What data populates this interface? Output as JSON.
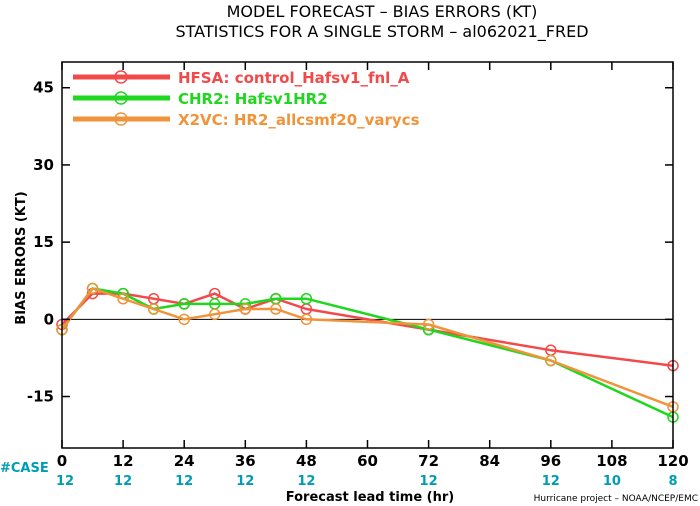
{
  "chart_data": {
    "type": "line",
    "title": "MODEL FORECAST – BIAS ERRORS (KT)",
    "subtitle": "STATISTICS FOR A SINGLE STORM – al062021_FRED",
    "xlabel": "Forecast lead time (hr)",
    "ylabel": "BIAS ERRORS (KT)",
    "xlim": [
      0,
      120
    ],
    "ylim": [
      -25,
      50
    ],
    "xticks": [
      0,
      12,
      24,
      36,
      48,
      60,
      72,
      84,
      96,
      108,
      120
    ],
    "yticks": [
      -15,
      0,
      15,
      30,
      45
    ],
    "zero_line": true,
    "legend_position": "top-left",
    "case_label": "#CASE",
    "case_x": [
      0,
      12,
      24,
      36,
      48,
      72,
      96,
      108,
      120
    ],
    "case_counts": [
      "12",
      "12",
      "12",
      "12",
      "12",
      "12",
      "12",
      "10",
      "8"
    ],
    "case_color": "#009cb4",
    "credit": "Hurricane project – NOAA/NCEP/EMC",
    "series": [
      {
        "name": "HFSA:  control_Hafsv1_fnl_A",
        "color": "#f24a4a",
        "x": [
          0,
          6,
          12,
          18,
          24,
          30,
          36,
          42,
          48,
          72,
          96,
          120
        ],
        "y": [
          -1,
          5,
          5,
          4,
          3,
          5,
          2,
          4,
          2,
          -2,
          -6,
          -9
        ]
      },
      {
        "name": "CHR2:  Hafsv1HR2",
        "color": "#1ed71e",
        "x": [
          0,
          6,
          12,
          18,
          24,
          30,
          36,
          42,
          48,
          72,
          96,
          120
        ],
        "y": [
          -2,
          6,
          5,
          2,
          3,
          3,
          3,
          4,
          4,
          -2,
          -8,
          -19
        ]
      },
      {
        "name": "X2VC:  HR2_allcsmf20_varycs",
        "color": "#f0943c",
        "x": [
          0,
          6,
          12,
          18,
          24,
          30,
          36,
          42,
          48,
          72,
          96,
          120
        ],
        "y": [
          -2,
          6,
          4,
          2,
          0,
          1,
          2,
          2,
          0,
          -1,
          -8,
          -17
        ]
      }
    ]
  }
}
